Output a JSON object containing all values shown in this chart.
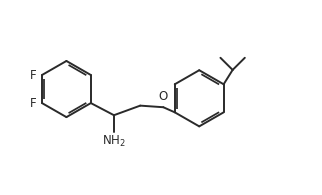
{
  "bg_color": "#ffffff",
  "line_color": "#2a2a2a",
  "text_color": "#2a2a2a",
  "font_size": 8.5,
  "line_width": 1.4,
  "figsize": [
    3.22,
    1.95
  ],
  "dpi": 100,
  "xlim": [
    0,
    10
  ],
  "ylim": [
    0,
    6.07
  ]
}
